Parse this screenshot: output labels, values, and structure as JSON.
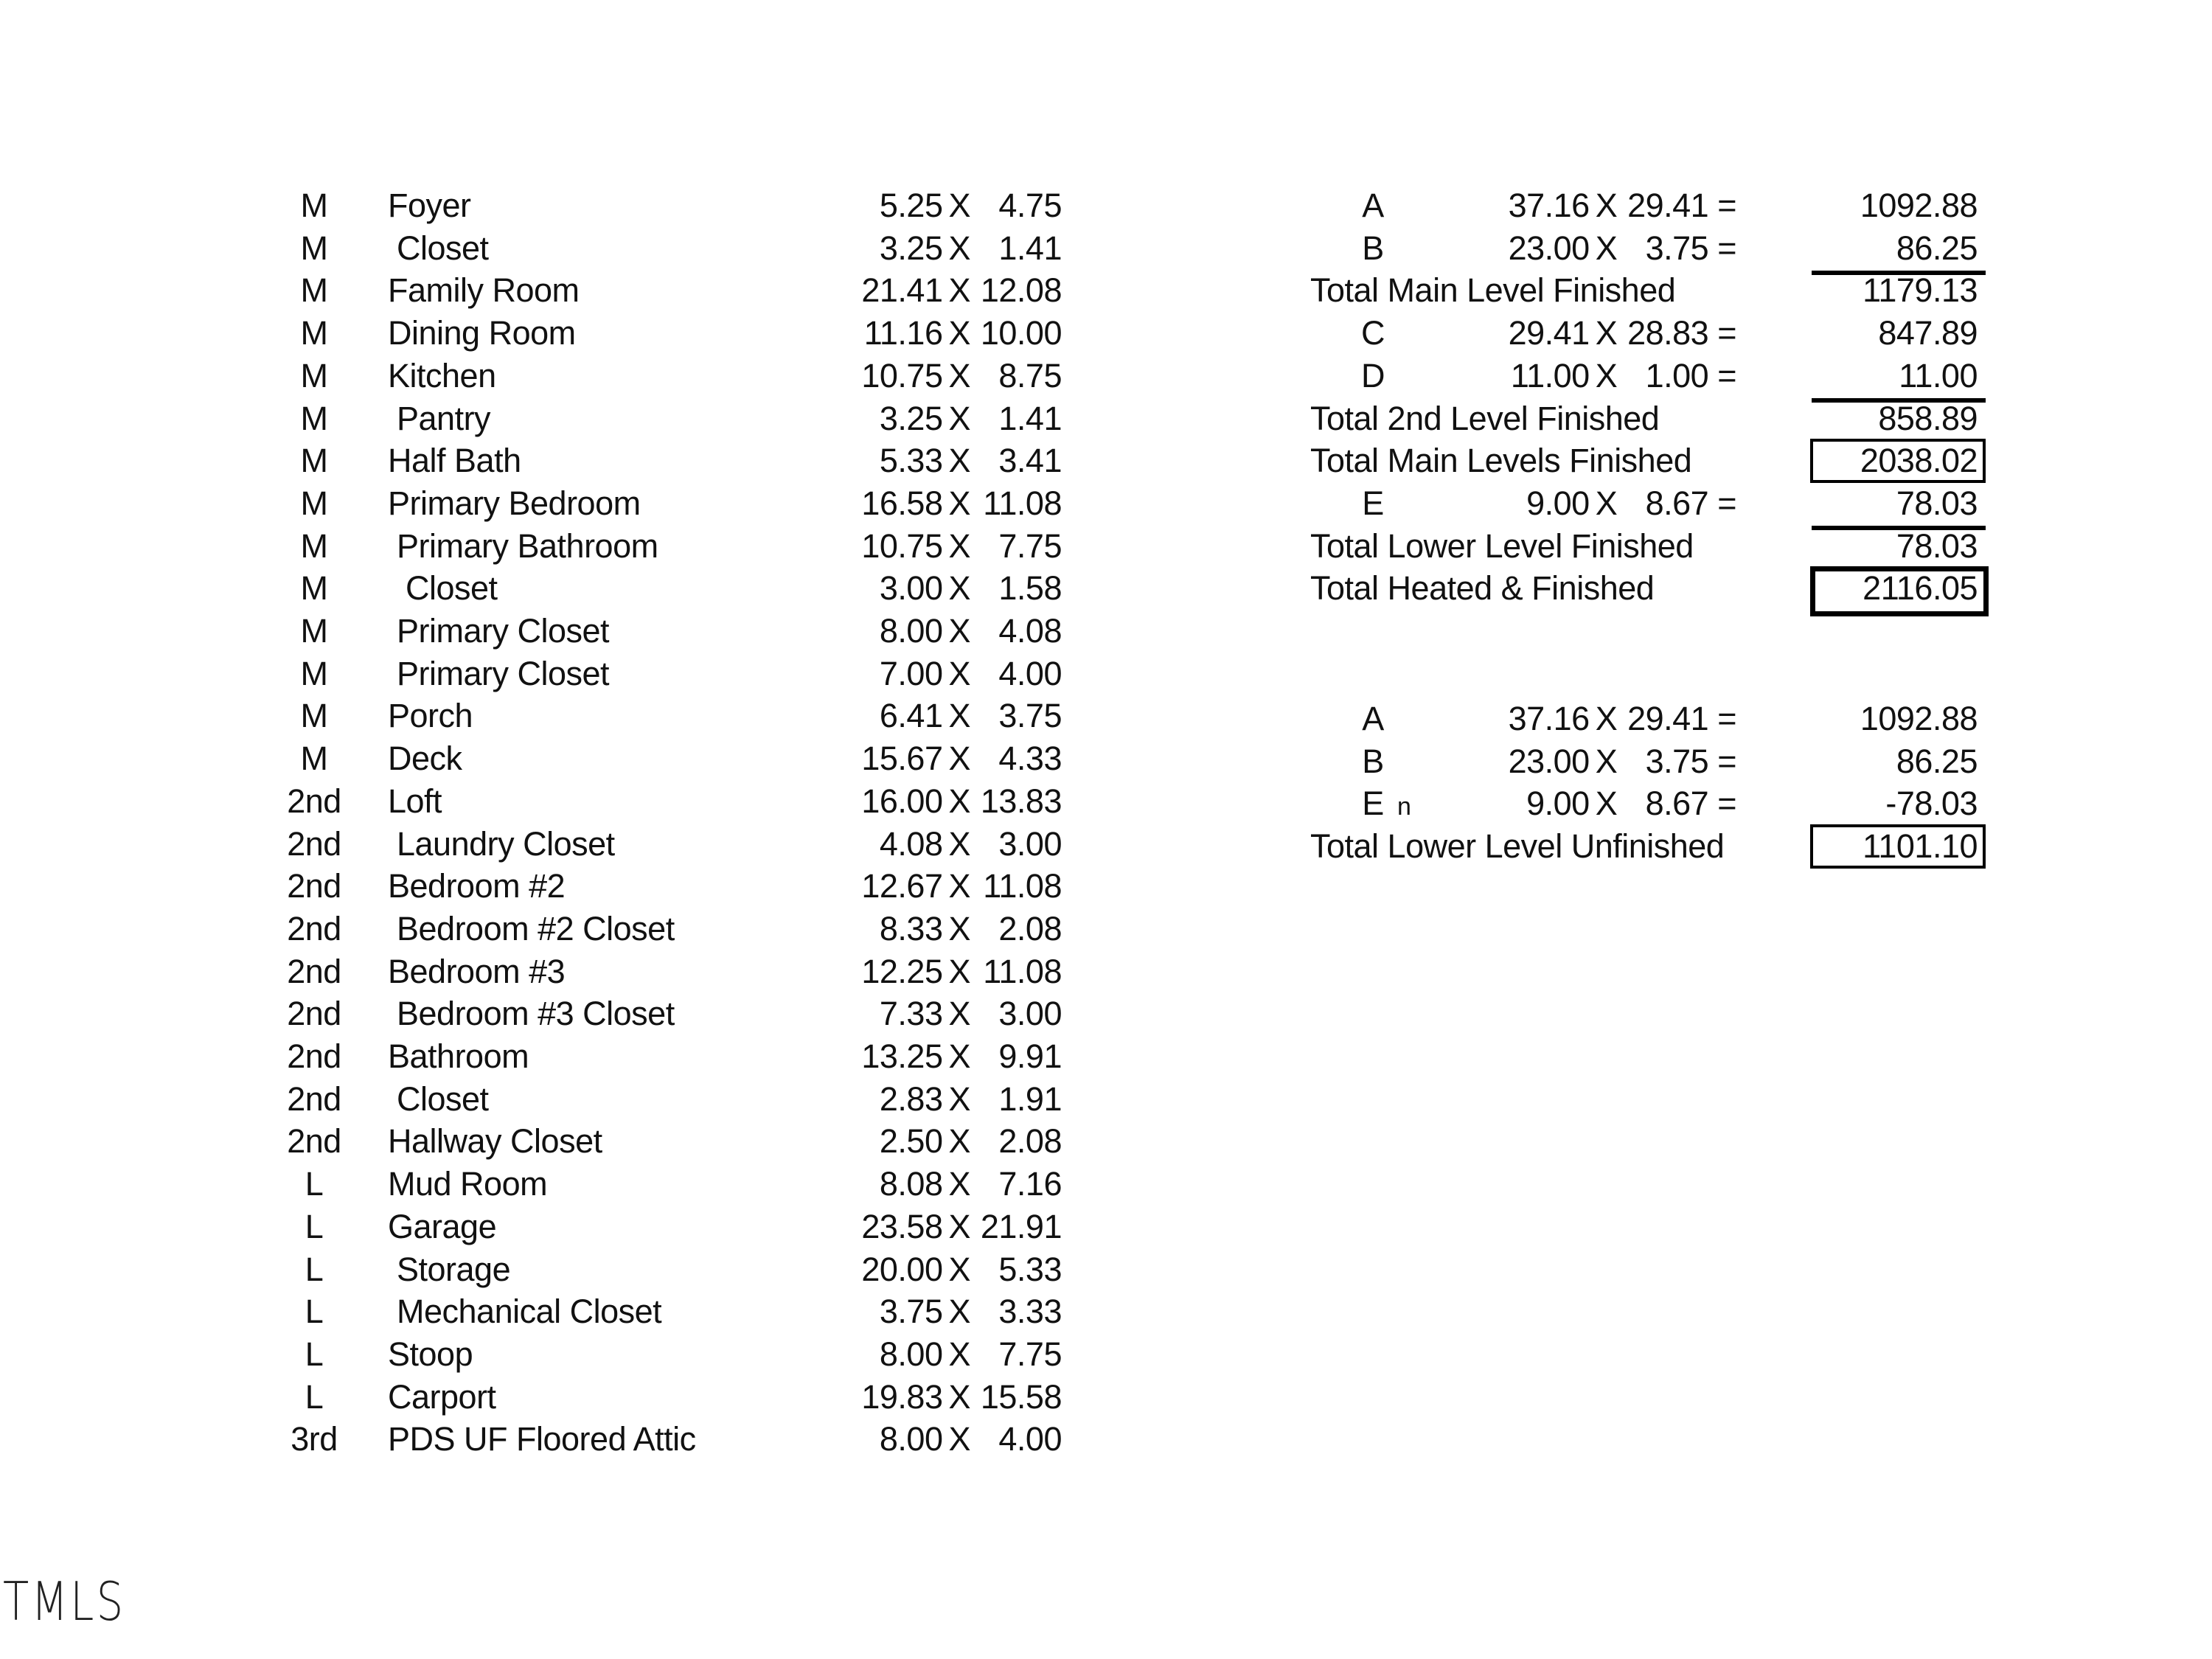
{
  "rooms": [
    {
      "level": "M",
      "name": "Foyer",
      "w": "5.25",
      "l": "4.75"
    },
    {
      "level": "M",
      "name": " Closet",
      "w": "3.25",
      "l": "1.41"
    },
    {
      "level": "M",
      "name": "Family Room",
      "w": "21.41",
      "l": "12.08"
    },
    {
      "level": "M",
      "name": "Dining Room",
      "w": "11.16",
      "l": "10.00"
    },
    {
      "level": "M",
      "name": "Kitchen",
      "w": "10.75",
      "l": "8.75"
    },
    {
      "level": "M",
      "name": " Pantry",
      "w": "3.25",
      "l": "1.41"
    },
    {
      "level": "M",
      "name": "Half Bath",
      "w": "5.33",
      "l": "3.41"
    },
    {
      "level": "M",
      "name": "Primary Bedroom",
      "w": "16.58",
      "l": "11.08"
    },
    {
      "level": "M",
      "name": " Primary Bathroom",
      "w": "10.75",
      "l": "7.75"
    },
    {
      "level": "M",
      "name": "  Closet",
      "w": "3.00",
      "l": "1.58"
    },
    {
      "level": "M",
      "name": " Primary Closet",
      "w": "8.00",
      "l": "4.08"
    },
    {
      "level": "M",
      "name": " Primary Closet",
      "w": "7.00",
      "l": "4.00"
    },
    {
      "level": "M",
      "name": "Porch",
      "w": "6.41",
      "l": "3.75"
    },
    {
      "level": "M",
      "name": "Deck",
      "w": "15.67",
      "l": "4.33"
    },
    {
      "level": "2nd",
      "name": "Loft",
      "w": "16.00",
      "l": "13.83"
    },
    {
      "level": "2nd",
      "name": " Laundry Closet",
      "w": "4.08",
      "l": "3.00"
    },
    {
      "level": "2nd",
      "name": "Bedroom #2",
      "w": "12.67",
      "l": "11.08"
    },
    {
      "level": "2nd",
      "name": " Bedroom #2 Closet",
      "w": "8.33",
      "l": "2.08"
    },
    {
      "level": "2nd",
      "name": "Bedroom #3",
      "w": "12.25",
      "l": "11.08"
    },
    {
      "level": "2nd",
      "name": " Bedroom #3 Closet",
      "w": "7.33",
      "l": "3.00"
    },
    {
      "level": "2nd",
      "name": "Bathroom",
      "w": "13.25",
      "l": "9.91"
    },
    {
      "level": "2nd",
      "name": " Closet",
      "w": "2.83",
      "l": "1.91"
    },
    {
      "level": "2nd",
      "name": "Hallway Closet",
      "w": "2.50",
      "l": "2.08"
    },
    {
      "level": "L",
      "name": "Mud Room",
      "w": "8.08",
      "l": "7.16"
    },
    {
      "level": "L",
      "name": "Garage",
      "w": "23.58",
      "l": "21.91"
    },
    {
      "level": "L",
      "name": " Storage",
      "w": "20.00",
      "l": "5.33"
    },
    {
      "level": "L",
      "name": " Mechanical Closet",
      "w": "3.75",
      "l": "3.33"
    },
    {
      "level": "L",
      "name": "Stoop",
      "w": "8.00",
      "l": "7.75"
    },
    {
      "level": "L",
      "name": "Carport",
      "w": "19.83",
      "l": "15.58"
    },
    {
      "level": "3rd",
      "name": "PDS UF Floored Attic",
      "w": "8.00",
      "l": "4.00"
    }
  ],
  "times_symbol": "X",
  "equals_symbol": "=",
  "summary_finished": [
    {
      "type": "calc",
      "label": "A",
      "w": "37.16",
      "l": "29.41",
      "value": "1092.88"
    },
    {
      "type": "calc",
      "label": "B",
      "w": "23.00",
      "l": "3.75",
      "value": "86.25",
      "underline": true
    },
    {
      "type": "total",
      "label": "Total Main Level Finished",
      "value": "1179.13"
    },
    {
      "type": "calc",
      "label": "C",
      "w": "29.41",
      "l": "28.83",
      "value": "847.89"
    },
    {
      "type": "calc",
      "label": "D",
      "w": "11.00",
      "l": "1.00",
      "value": "11.00",
      "underline": true
    },
    {
      "type": "total",
      "label": "Total 2nd Level Finished",
      "value": "858.89"
    },
    {
      "type": "total",
      "label": "Total Main Levels Finished",
      "value": "2038.02",
      "box": "thin"
    },
    {
      "type": "calc",
      "label": "E",
      "w": "9.00",
      "l": "8.67",
      "value": "78.03",
      "underline": true
    },
    {
      "type": "total",
      "label": "Total Lower Level Finished",
      "value": "78.03"
    },
    {
      "type": "total",
      "label": "Total Heated & Finished",
      "value": "2116.05",
      "box": "thick"
    }
  ],
  "summary_unfinished": [
    {
      "type": "calc",
      "label": "A",
      "w": "37.16",
      "l": "29.41",
      "value": "1092.88"
    },
    {
      "type": "calc",
      "label": "B",
      "w": "23.00",
      "l": "3.75",
      "value": "86.25"
    },
    {
      "type": "calc",
      "label": "E",
      "suffix": "n",
      "w": "9.00",
      "l": "8.67",
      "value": "-78.03"
    },
    {
      "type": "total",
      "label": "Total Lower Level Unfinished",
      "value": "1101.10",
      "box": "thin"
    }
  ],
  "watermark": "TMLS"
}
